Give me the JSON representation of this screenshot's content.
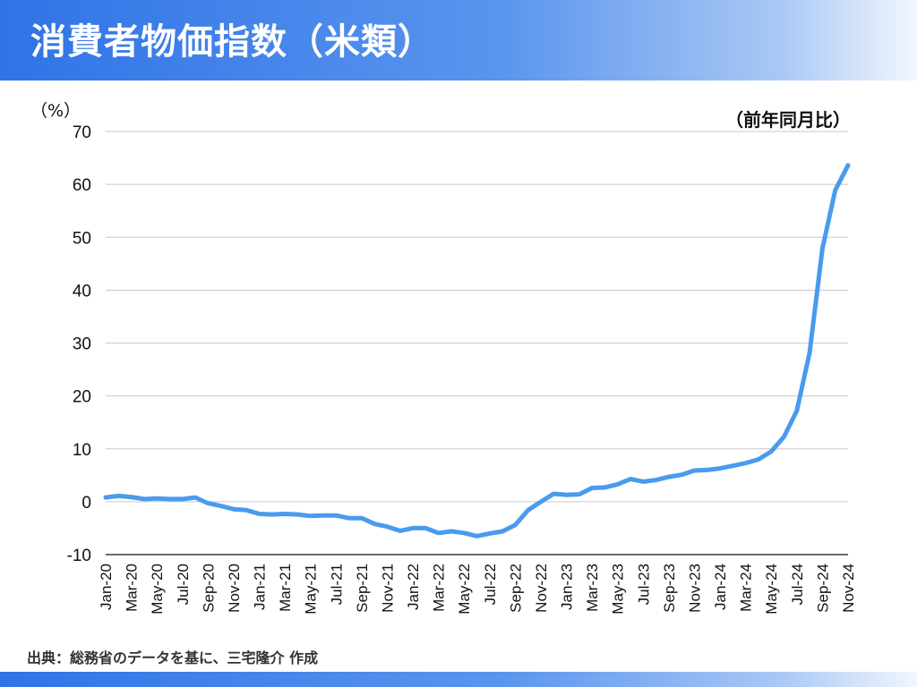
{
  "header": {
    "title": "消費者物価指数（米類）"
  },
  "footer": {
    "source": "出典：総務省のデータを基に、三宅隆介 作成"
  },
  "colors": {
    "line": "#4a9aee",
    "grid": "#c8c8c8",
    "axis": "#111111"
  },
  "chart_data": {
    "type": "line",
    "ylabel": "（%）",
    "note": "（前年同月比）",
    "ylim": [
      -10,
      70
    ],
    "yticks": [
      -10,
      0,
      10,
      20,
      30,
      40,
      50,
      60,
      70
    ],
    "grid": true,
    "x": [
      "Jan-20",
      "Feb-20",
      "Mar-20",
      "Apr-20",
      "May-20",
      "Jun-20",
      "Jul-20",
      "Aug-20",
      "Sep-20",
      "Oct-20",
      "Nov-20",
      "Dec-20",
      "Jan-21",
      "Feb-21",
      "Mar-21",
      "Apr-21",
      "May-21",
      "Jun-21",
      "Jul-21",
      "Aug-21",
      "Sep-21",
      "Oct-21",
      "Nov-21",
      "Dec-21",
      "Jan-22",
      "Feb-22",
      "Mar-22",
      "Apr-22",
      "May-22",
      "Jun-22",
      "Jul-22",
      "Aug-22",
      "Sep-22",
      "Oct-22",
      "Nov-22",
      "Dec-22",
      "Jan-23",
      "Feb-23",
      "Mar-23",
      "Apr-23",
      "May-23",
      "Jun-23",
      "Jul-23",
      "Aug-23",
      "Sep-23",
      "Oct-23",
      "Nov-23",
      "Dec-23",
      "Jan-24",
      "Feb-24",
      "Mar-24",
      "Apr-24",
      "May-24",
      "Jun-24",
      "Jul-24",
      "Aug-24",
      "Sep-24",
      "Oct-24",
      "Nov-24"
    ],
    "xtick_labels": [
      "Jan-20",
      "Mar-20",
      "May-20",
      "Jul-20",
      "Sep-20",
      "Nov-20",
      "Jan-21",
      "Mar-21",
      "May-21",
      "Jul-21",
      "Sep-21",
      "Nov-21",
      "Jan-22",
      "Mar-22",
      "May-22",
      "Jul-22",
      "Sep-22",
      "Nov-22",
      "Jan-23",
      "Mar-23",
      "May-23",
      "Jul-23",
      "Sep-23",
      "Nov-23",
      "Jan-24",
      "Mar-24",
      "May-24",
      "Jul-24",
      "Sep-24",
      "Nov-24"
    ],
    "series": [
      {
        "values": [
          0.8,
          1.1,
          0.9,
          0.5,
          0.6,
          0.5,
          0.5,
          0.8,
          -0.3,
          -0.8,
          -1.4,
          -1.6,
          -2.3,
          -2.4,
          -2.3,
          -2.4,
          -2.7,
          -2.6,
          -2.6,
          -3.1,
          -3.1,
          -4.2,
          -4.7,
          -5.5,
          -5.0,
          -5.0,
          -5.9,
          -5.6,
          -5.9,
          -6.5,
          -6.0,
          -5.6,
          -4.4,
          -1.6,
          0.0,
          1.5,
          1.3,
          1.4,
          2.6,
          2.7,
          3.3,
          4.3,
          3.8,
          4.1,
          4.7,
          5.1,
          5.9,
          6.0,
          6.3,
          6.8,
          7.3,
          8.0,
          9.5,
          12.3,
          17.2,
          28.2,
          47.9,
          58.9,
          63.6
        ]
      }
    ]
  }
}
